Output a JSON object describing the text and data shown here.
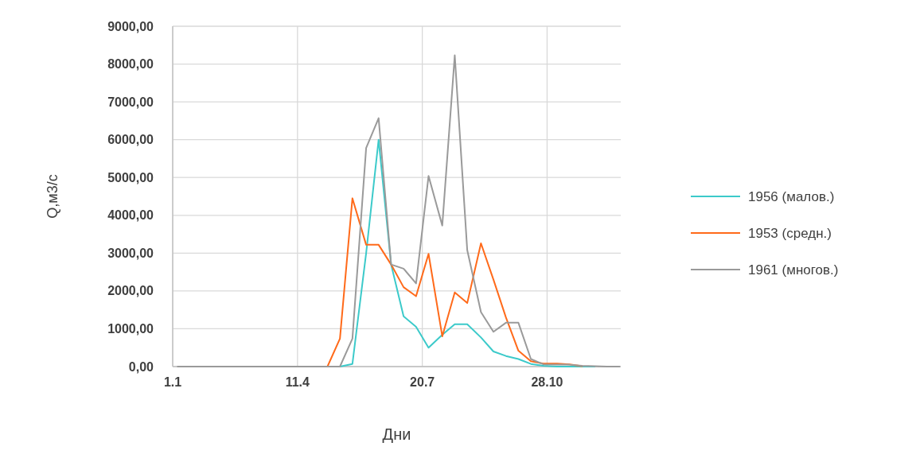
{
  "chart_data": {
    "type": "line",
    "xlabel": "Дни",
    "ylabel": "Q,м3/с",
    "x": [
      "--01-05",
      "--01-15",
      "--01-25",
      "--02-05",
      "--02-15",
      "--02-25",
      "--03-05",
      "--03-15",
      "--03-25",
      "--04-05",
      "--04-15",
      "--04-25",
      "--05-05",
      "--05-15",
      "--05-25",
      "--06-05",
      "--06-15",
      "--06-25",
      "--07-05",
      "--07-15",
      "--07-25",
      "--08-05",
      "--08-15",
      "--08-25",
      "--09-05",
      "--09-15",
      "--09-25",
      "--10-05",
      "--10-15",
      "--10-25",
      "--11-05",
      "--11-15",
      "--11-25",
      "--12-05",
      "--12-15",
      "--12-25"
    ],
    "series": [
      {
        "name": "1956 (малов.)",
        "color": "#3ccaca",
        "values": [
          null,
          null,
          null,
          null,
          null,
          null,
          null,
          null,
          null,
          null,
          null,
          null,
          0,
          0,
          70,
          3000,
          6000,
          2700,
          1330,
          1050,
          500,
          840,
          1120,
          1120,
          770,
          400,
          280,
          200,
          70,
          20,
          0,
          0,
          0,
          0,
          null,
          null
        ]
      },
      {
        "name": "1953 (средн.)",
        "color": "#ff6a1a",
        "values": [
          null,
          null,
          null,
          null,
          null,
          null,
          null,
          null,
          null,
          null,
          null,
          0,
          0,
          740,
          4450,
          3220,
          3220,
          2700,
          2100,
          1860,
          2980,
          800,
          1960,
          1680,
          3260,
          2300,
          1300,
          420,
          140,
          80,
          80,
          60,
          10,
          null,
          null,
          null
        ]
      },
      {
        "name": "1961 (многов.)",
        "color": "#9a9a9a",
        "values": [
          0,
          0,
          0,
          0,
          0,
          0,
          0,
          0,
          0,
          0,
          0,
          0,
          0,
          0,
          740,
          5780,
          6570,
          2700,
          2590,
          2200,
          5040,
          3730,
          8230,
          3080,
          1440,
          920,
          1160,
          1160,
          200,
          60,
          50,
          50,
          20,
          10,
          0,
          0
        ]
      }
    ],
    "xlim": [
      "--01-01",
      "--12-26"
    ],
    "xticks": [
      {
        "value": "--01-01",
        "label": "1.1"
      },
      {
        "value": "--04-11",
        "label": "11.4"
      },
      {
        "value": "--07-20",
        "label": "20.7"
      },
      {
        "value": "--10-28",
        "label": "28.10"
      }
    ],
    "ylim": [
      0,
      9000
    ],
    "yticks": [
      {
        "value": 0,
        "label": "0,00"
      },
      {
        "value": 1000,
        "label": "1000,00"
      },
      {
        "value": 2000,
        "label": "2000,00"
      },
      {
        "value": 3000,
        "label": "3000,00"
      },
      {
        "value": 4000,
        "label": "4000,00"
      },
      {
        "value": 5000,
        "label": "5000,00"
      },
      {
        "value": 6000,
        "label": "6000,00"
      },
      {
        "value": 7000,
        "label": "7000,00"
      },
      {
        "value": 8000,
        "label": "8000,00"
      },
      {
        "value": 9000,
        "label": "9000,00"
      }
    ],
    "grid": true,
    "legend": "right",
    "marker": "none",
    "line_style": "solid"
  }
}
